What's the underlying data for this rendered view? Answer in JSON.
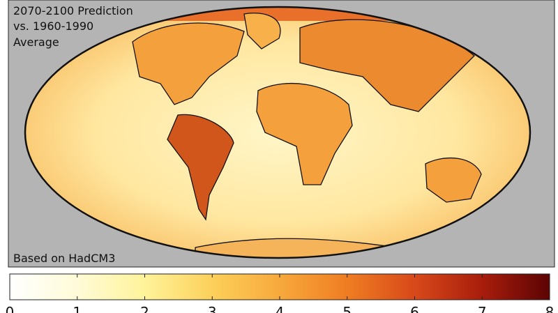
{
  "map": {
    "title": [
      "2070-2100 Prediction",
      "vs. 1960-1990",
      "Average"
    ],
    "source": "Based on HadCM3",
    "colorbar": {
      "range": [
        0,
        8
      ],
      "ticks": [
        0,
        1,
        2,
        3,
        4,
        5,
        6,
        7,
        8
      ]
    }
  }
}
